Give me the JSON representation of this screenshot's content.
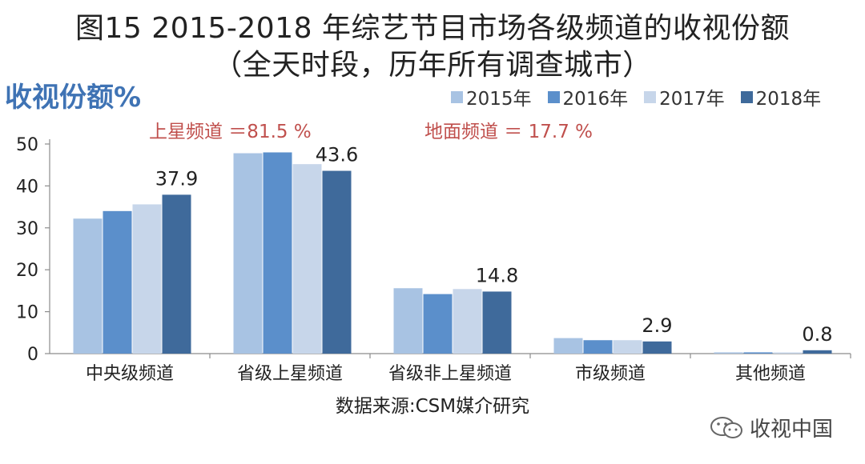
{
  "title_line1": "图15 2015-2018 年综艺节目市场各级频道的收视份额",
  "title_line2": "（全天时段，历年所有调查城市）",
  "y_label": "收视份额%",
  "annotations": {
    "satellite": "上星频道 ＝81.5 %",
    "ground": "地面频道 ＝ 17.7 %"
  },
  "source": "数据来源:CSM媒介研究",
  "watermark": "收视中国",
  "colors": {
    "2015": "#a8c3e3",
    "2016": "#5b8fcb",
    "2017": "#c7d6ea",
    "2018": "#3f6a9b",
    "annotation": "#c0504d",
    "ylabel": "#3f73b4"
  },
  "chart_data": {
    "type": "bar",
    "title": "图15 2015-2018 年综艺节目市场各级频道的收视份额",
    "ylabel": "收视份额%",
    "xlabel": "",
    "ylim": [
      0,
      50
    ],
    "yticks": [
      0,
      10,
      20,
      30,
      40,
      50
    ],
    "grid": false,
    "legend": "top-right",
    "categories": [
      "中央级频道",
      "省级上星频道",
      "省级非上星频道",
      "市级频道",
      "其他频道"
    ],
    "series": [
      {
        "name": "2015年",
        "values": [
          32.2,
          47.8,
          15.6,
          3.7,
          0.3
        ]
      },
      {
        "name": "2016年",
        "values": [
          34.0,
          48.0,
          14.2,
          3.2,
          0.3
        ]
      },
      {
        "name": "2017年",
        "values": [
          35.6,
          45.2,
          15.4,
          3.2,
          0.2
        ]
      },
      {
        "name": "2018年",
        "values": [
          37.9,
          43.6,
          14.8,
          2.9,
          0.8
        ]
      }
    ],
    "data_labels": [
      {
        "category": "中央级频道",
        "series": "2018年",
        "text": "37.9"
      },
      {
        "category": "省级上星频道",
        "series": "2018年",
        "text": "43.6"
      },
      {
        "category": "省级非上星频道",
        "series": "2018年",
        "text": "14.8"
      },
      {
        "category": "市级频道",
        "series": "2018年",
        "text": "2.9"
      },
      {
        "category": "其他频道",
        "series": "2018年",
        "text": "0.8"
      }
    ]
  }
}
